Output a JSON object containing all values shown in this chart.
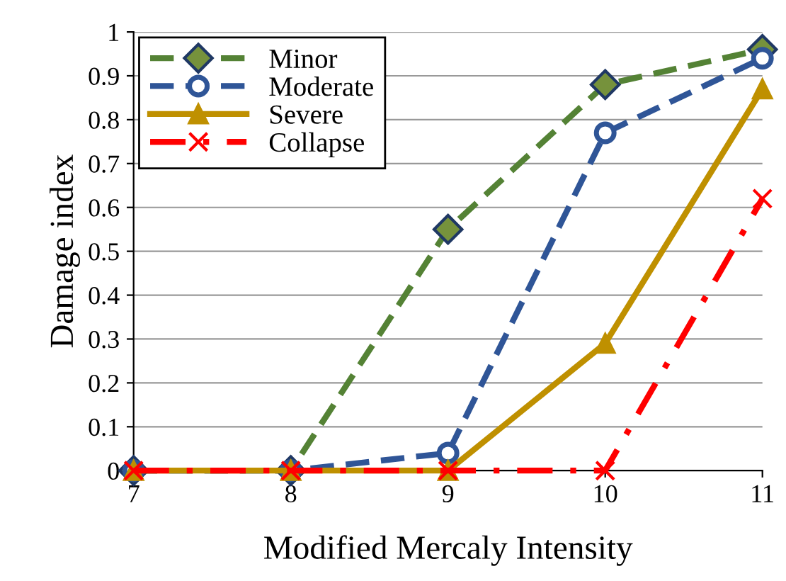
{
  "chart_data": {
    "type": "line",
    "xlabel": "Modified Mercaly Intensity",
    "ylabel": "Damage index",
    "x": [
      7,
      8,
      9,
      10,
      11
    ],
    "series": [
      {
        "name": "Minor",
        "color": "#548235",
        "values": [
          0,
          0,
          0.55,
          0.88,
          0.96
        ],
        "marker": "diamond",
        "line_style": "dashed"
      },
      {
        "name": "Moderate",
        "color": "#2f5597",
        "values": [
          0,
          0,
          0.04,
          0.77,
          0.94
        ],
        "marker": "circle",
        "line_style": "dashed"
      },
      {
        "name": "Severe",
        "color": "#bf9000",
        "values": [
          0,
          0,
          0,
          0.29,
          0.87
        ],
        "marker": "triangle",
        "line_style": "solid"
      },
      {
        "name": "Collapse",
        "color": "#ff0000",
        "values": [
          0,
          0,
          0,
          0,
          0.62
        ],
        "marker": "cross",
        "line_style": "dotted"
      }
    ],
    "xlim": [
      7,
      11
    ],
    "xticks": [
      7,
      8,
      9,
      10,
      11
    ],
    "ylim": [
      0,
      1
    ],
    "yticks": [
      0,
      0.1,
      0.2,
      0.3,
      0.4,
      0.5,
      0.6,
      0.7,
      0.8,
      0.9,
      1
    ],
    "grid": "y",
    "legend": "top left"
  }
}
